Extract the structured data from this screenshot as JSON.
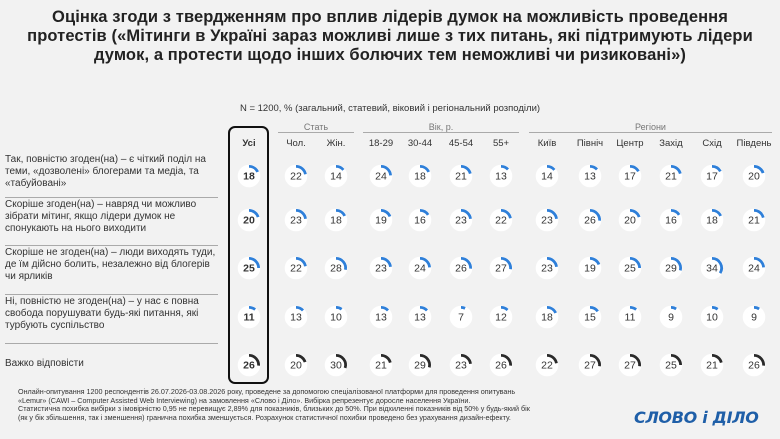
{
  "chart_data": {
    "type": "donut-table",
    "title": "Оцінка згоди з твердженням про вплив лідерів думок на можливість проведення протестів («Мітинги в Україні зараз можливі лише з тих питань, які підтримують лідери думок, а протести щодо інших болючих тем неможливі чи ризиковані»)",
    "subtitle": "N = 1200, % (загальний, статевий, віковий і регіональний розподіли)",
    "groups": [
      {
        "name": "Стать",
        "columns": [
          "Чол.",
          "Жін."
        ]
      },
      {
        "name": "Вік, р.",
        "columns": [
          "18-29",
          "30-44",
          "45-54",
          "55+"
        ]
      },
      {
        "name": "Регіони",
        "columns": [
          "Київ",
          "Північ",
          "Центр",
          "Захід",
          "Схід",
          "Південь"
        ]
      }
    ],
    "columns": [
      "Усі",
      "Чол.",
      "Жін.",
      "18-29",
      "30-44",
      "45-54",
      "55+",
      "Київ",
      "Північ",
      "Центр",
      "Захід",
      "Схід",
      "Південь"
    ],
    "rows": [
      {
        "label": "Так, повністю згоден(на) – є чіткий поділ на теми, «дозволені» блогерами та медіа, та «табуйовані»",
        "values": [
          18,
          22,
          14,
          24,
          18,
          21,
          13,
          14,
          13,
          17,
          21,
          17,
          20
        ]
      },
      {
        "label": "Скоріше згоден(на) – навряд чи можливо зібрати мітинг, якщо лідери думок не спонукають на нього виходити",
        "values": [
          20,
          23,
          18,
          19,
          16,
          23,
          22,
          23,
          26,
          20,
          16,
          18,
          21
        ]
      },
      {
        "label": "Скоріше не згоден(на) – люди виходять туди, де їм дійсно болить, незалежно від блогерів чи ярликів",
        "values": [
          25,
          22,
          28,
          23,
          24,
          26,
          27,
          23,
          19,
          25,
          29,
          34,
          24
        ]
      },
      {
        "label": "Ні, повністю не згоден(на) – у нас є повна свобода порушувати будь-які питання, які турбують суспільство",
        "values": [
          11,
          13,
          10,
          13,
          13,
          7,
          12,
          18,
          15,
          11,
          9,
          10,
          9
        ]
      },
      {
        "label": "Важко відповісти",
        "values": [
          26,
          20,
          30,
          21,
          29,
          23,
          26,
          22,
          27,
          27,
          25,
          21,
          26
        ]
      }
    ],
    "colors": {
      "positive": "#2e7fd9",
      "unsure": "#2a2a2a",
      "track": "#ffffff"
    }
  },
  "footer": {
    "line1": "Онлайн-опитування 1200 респондентів 26.07.2026-03.08.2026 року, проведене за допомогою спеціалізованої платформи для проведення опитувань",
    "line2": "«Lemur» (CAWI – Computer Assisted Web Interviewing) на замовлення «Слово і Діло». Вибірка репрезентує доросле населення України.",
    "line3": "Статистична похибка вибірки з імовірністю 0,95 не перевищує 2,89% для показників, близьких до 50%. При відхиленні показників від 50% у будь-який бік",
    "line4": "(як у бік збільшення, так і зменшення) гранична похибка зменшується. Розрахунок статистичної похибки проведено без урахування дизайн-ефекту."
  },
  "logo": "СЛОВО і ДІЛО"
}
